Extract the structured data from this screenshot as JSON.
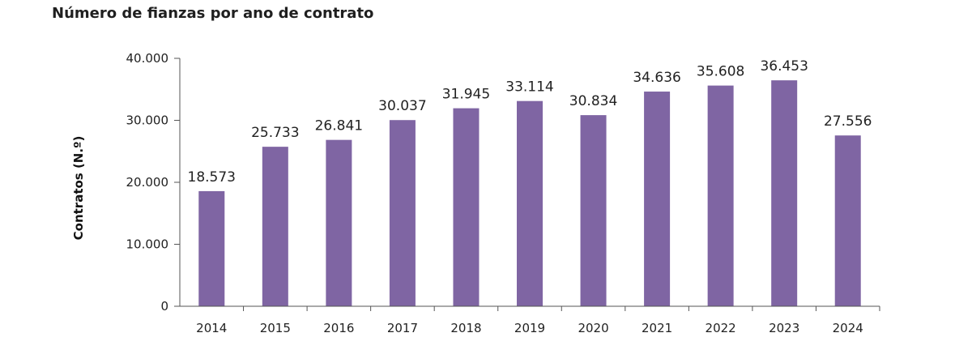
{
  "chart_data": {
    "type": "bar",
    "title": "Número de fianzas por ano de contrato",
    "xlabel": "",
    "ylabel": "Contratos (N.º)",
    "categories": [
      "2014",
      "2015",
      "2016",
      "2017",
      "2018",
      "2019",
      "2020",
      "2021",
      "2022",
      "2023",
      "2024"
    ],
    "values": [
      18573,
      25733,
      26841,
      30037,
      31945,
      33114,
      30834,
      34636,
      35608,
      36453,
      27556
    ],
    "value_labels": [
      "18.573",
      "25.733",
      "26.841",
      "30.037",
      "31.945",
      "33.114",
      "30.834",
      "34.636",
      "35.608",
      "36.453",
      "27.556"
    ],
    "ylim": [
      0,
      40000
    ],
    "yticks": [
      0,
      10000,
      20000,
      30000,
      40000
    ],
    "ytick_labels": [
      "0",
      "10.000",
      "20.000",
      "30.000",
      "40.000"
    ],
    "grid": false,
    "legend": "none",
    "bar_color": "#7f65a3"
  }
}
